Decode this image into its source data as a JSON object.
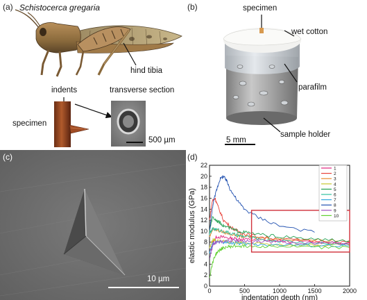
{
  "panel_a": {
    "label": "(a)",
    "species": "Schistocerca gregaria",
    "hind_tibia": "hind tibia",
    "indents": "indents",
    "transverse_section": "transverse section",
    "specimen": "specimen",
    "scalebar": "500 µm"
  },
  "panel_b": {
    "label": "(b)",
    "specimen": "specimen",
    "wet_cotton": "wet cotton",
    "parafilm": "parafilm",
    "sample_holder": "sample holder",
    "scalebar": "5 mm"
  },
  "panel_c": {
    "label": "(c)",
    "scalebar": "10 µm"
  },
  "panel_d": {
    "label": "(d)"
  },
  "chart_data": {
    "type": "line",
    "xlabel": "indentation depth (nm)",
    "ylabel": "elastic modulus (GPa)",
    "xlim": [
      0,
      2000
    ],
    "ylim": [
      0,
      22
    ],
    "xticks": [
      "0",
      "500",
      "1000",
      "1500",
      "2000"
    ],
    "yticks": [
      "0",
      "2",
      "4",
      "6",
      "8",
      "10",
      "12",
      "14",
      "16",
      "18",
      "20",
      "22"
    ],
    "highlight_box": {
      "x": [
        600,
        2000
      ],
      "y": [
        6.2,
        13.8
      ]
    },
    "legend": [
      "1",
      "2",
      "3",
      "4",
      "5",
      "6",
      "7",
      "8",
      "9",
      "10"
    ],
    "series": [
      {
        "name": "1",
        "color": "#e0207a",
        "x": [
          0,
          50,
          100,
          200,
          300,
          400,
          500,
          700,
          1000,
          1500,
          2000
        ],
        "y": [
          6.0,
          8.0,
          9.0,
          8.9,
          8.7,
          8.6,
          8.5,
          8.4,
          8.2,
          8.0,
          7.9
        ]
      },
      {
        "name": "2",
        "color": "#e8413a",
        "x": [
          0,
          40,
          80,
          120,
          200,
          300,
          400,
          500,
          700,
          1000,
          1500,
          2000
        ],
        "y": [
          12.0,
          15.5,
          16.0,
          14.5,
          12.0,
          10.8,
          10.0,
          9.5,
          9.0,
          8.6,
          8.2,
          8.0
        ]
      },
      {
        "name": "3",
        "color": "#e88a30",
        "x": [
          0,
          50,
          100,
          200,
          300,
          400,
          500,
          700,
          1000,
          1500,
          2000
        ],
        "y": [
          9.0,
          10.5,
          10.2,
          9.8,
          9.5,
          9.2,
          9.0,
          8.8,
          8.6,
          8.4,
          8.3
        ]
      },
      {
        "name": "4",
        "color": "#c8c830",
        "x": [
          0,
          50,
          100,
          200,
          300,
          400,
          500,
          700,
          1000,
          1500,
          2000
        ],
        "y": [
          7.0,
          8.5,
          8.3,
          8.1,
          8.0,
          7.9,
          7.8,
          7.7,
          7.6,
          7.5,
          7.4
        ]
      },
      {
        "name": "5",
        "color": "#20a050",
        "x": [
          0,
          40,
          100,
          150,
          200,
          300,
          400,
          500,
          700,
          1000,
          1500,
          2000
        ],
        "y": [
          10.0,
          12.5,
          12.0,
          11.5,
          11.0,
          10.5,
          10.0,
          9.8,
          9.4,
          9.0,
          8.5,
          8.2
        ]
      },
      {
        "name": "6",
        "color": "#30c0a0",
        "x": [
          0,
          50,
          100,
          200,
          300,
          400,
          500,
          700,
          1000,
          1500,
          2000
        ],
        "y": [
          9.5,
          10.5,
          10.3,
          10.0,
          9.6,
          9.2,
          9.0,
          8.6,
          8.2,
          7.8,
          7.6
        ]
      },
      {
        "name": "7",
        "color": "#30a8e0",
        "x": [
          0,
          50,
          100,
          200,
          300,
          400,
          500,
          700,
          1000,
          1500,
          2000
        ],
        "y": [
          6.0,
          7.8,
          8.0,
          8.0,
          7.9,
          7.8,
          7.7,
          7.6,
          7.5,
          7.4,
          7.3
        ]
      },
      {
        "name": "8",
        "color": "#2050b0",
        "x": [
          0,
          50,
          100,
          150,
          200,
          250,
          300,
          400,
          500,
          700,
          1000,
          1500
        ],
        "y": [
          10.0,
          15.0,
          17.5,
          19.5,
          20.0,
          19.0,
          17.5,
          15.5,
          14.0,
          12.5,
          11.0,
          9.8
        ]
      },
      {
        "name": "9",
        "color": "#a050c0",
        "x": [
          0,
          50,
          100,
          200,
          300,
          400,
          500,
          700,
          1000,
          1500,
          2000
        ],
        "y": [
          5.0,
          7.5,
          8.0,
          8.2,
          8.3,
          8.3,
          8.2,
          8.1,
          8.0,
          7.8,
          7.7
        ]
      },
      {
        "name": "10",
        "color": "#60d030",
        "x": [
          0,
          30,
          60,
          100,
          150,
          200,
          300,
          400,
          500,
          700,
          1000,
          1500,
          2000
        ],
        "y": [
          1.5,
          3.5,
          5.0,
          6.0,
          6.6,
          7.0,
          7.2,
          7.3,
          7.3,
          7.3,
          7.2,
          7.1,
          7.0
        ]
      }
    ]
  }
}
